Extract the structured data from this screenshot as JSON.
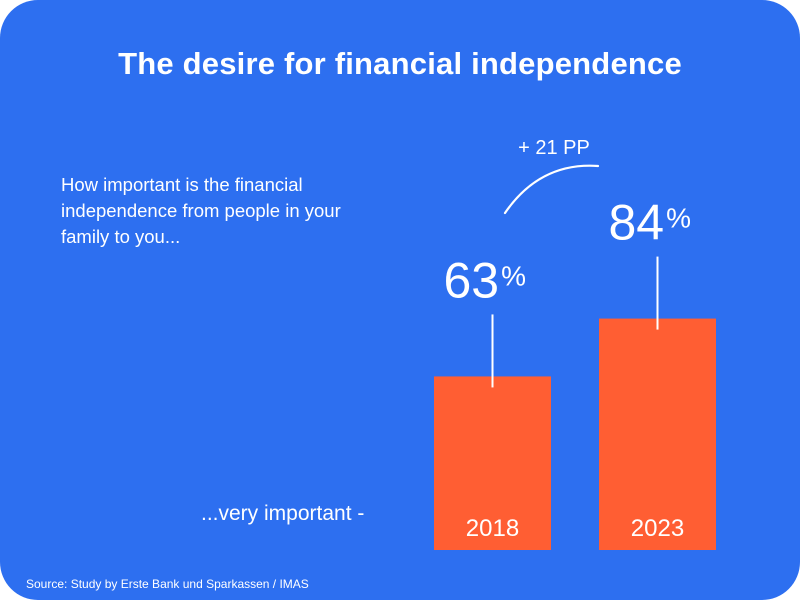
{
  "title": "The desire for financial independence",
  "question": "How important is the financial independence from people in your family to you...",
  "row_label": "...very important -",
  "source": "Source: Study by Erste Bank und Sparkassen / IMAS",
  "change_label": "+ 21 PP",
  "colors": {
    "background": "#2d6ff0",
    "bar": "#ff5e33",
    "text": "#ffffff"
  },
  "chart_data": {
    "type": "bar",
    "categories": [
      "2018",
      "2023"
    ],
    "values": [
      63,
      84
    ],
    "value_labels": [
      "63",
      "84"
    ],
    "unit": "%",
    "title": "The desire for financial independence",
    "xlabel": "",
    "ylabel": "",
    "ylim": [
      0,
      100
    ],
    "annotation": "+ 21 PP",
    "grid": false,
    "legend": "none"
  }
}
